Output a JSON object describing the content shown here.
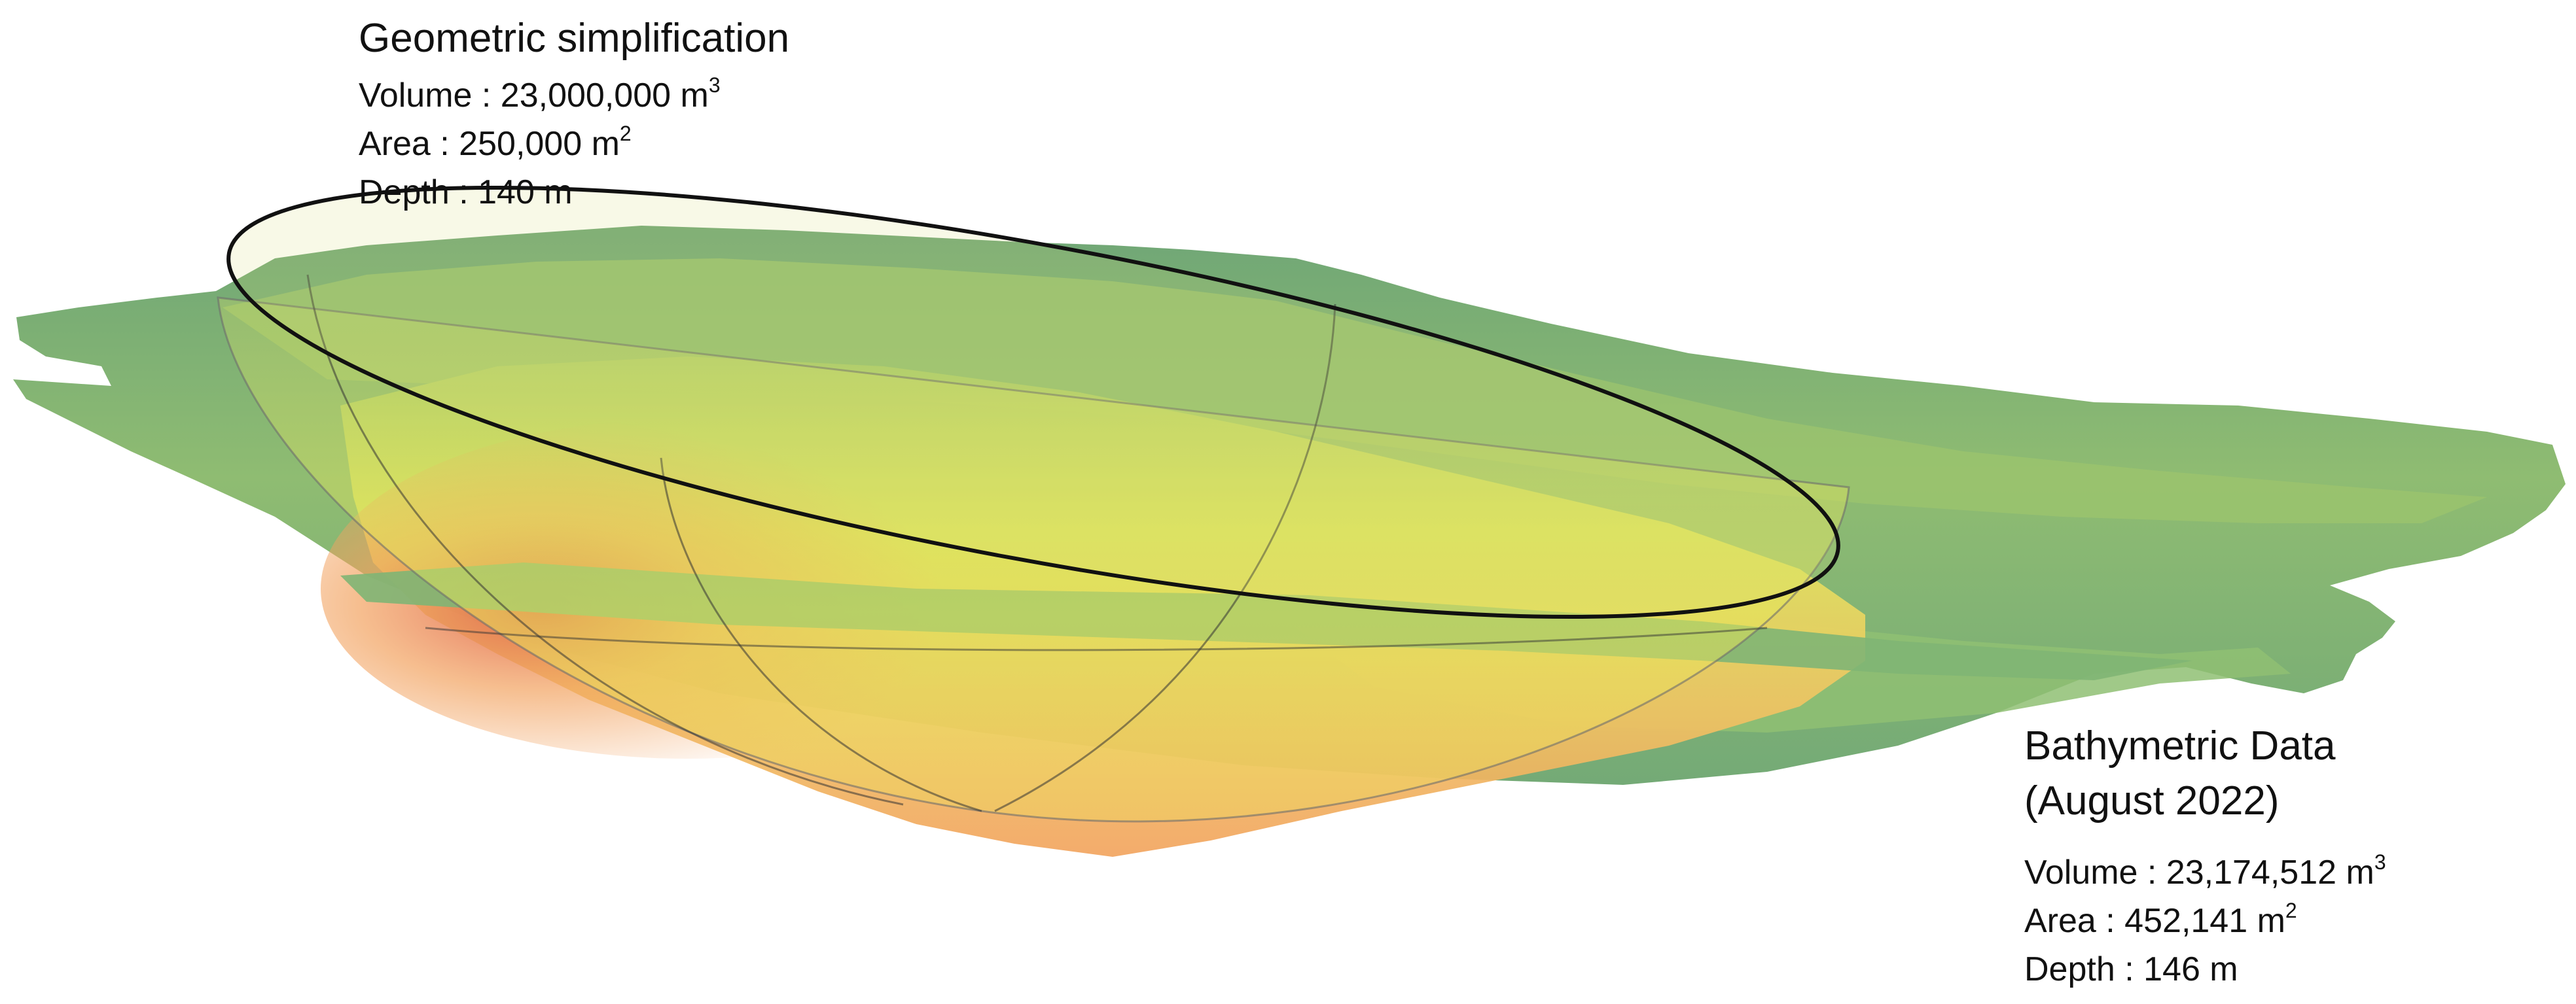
{
  "geometric_simplification": {
    "title": "Geometric simplification",
    "volume_label": "Volume : 23,000,000 m",
    "volume_unit_exp": "3",
    "area_label": "Area : 250,000 m",
    "area_unit_exp": "2",
    "depth_label": "Depth : 140 m"
  },
  "bathymetric_data": {
    "title_line1": "Bathymetric Data",
    "title_line2": "(August 2022)",
    "volume_label": "Volume : 23,174,512 m",
    "volume_unit_exp": "3",
    "area_label": "Area : 452,141 m",
    "area_unit_exp": "2",
    "depth_label": "Depth : 146 m"
  },
  "colors": {
    "shallow": "#6fa676",
    "mid_green": "#9cc46e",
    "yellow": "#e8e85a",
    "orange": "#f3b062",
    "deep": "#e06655",
    "ellipse_stroke": "#111111"
  }
}
